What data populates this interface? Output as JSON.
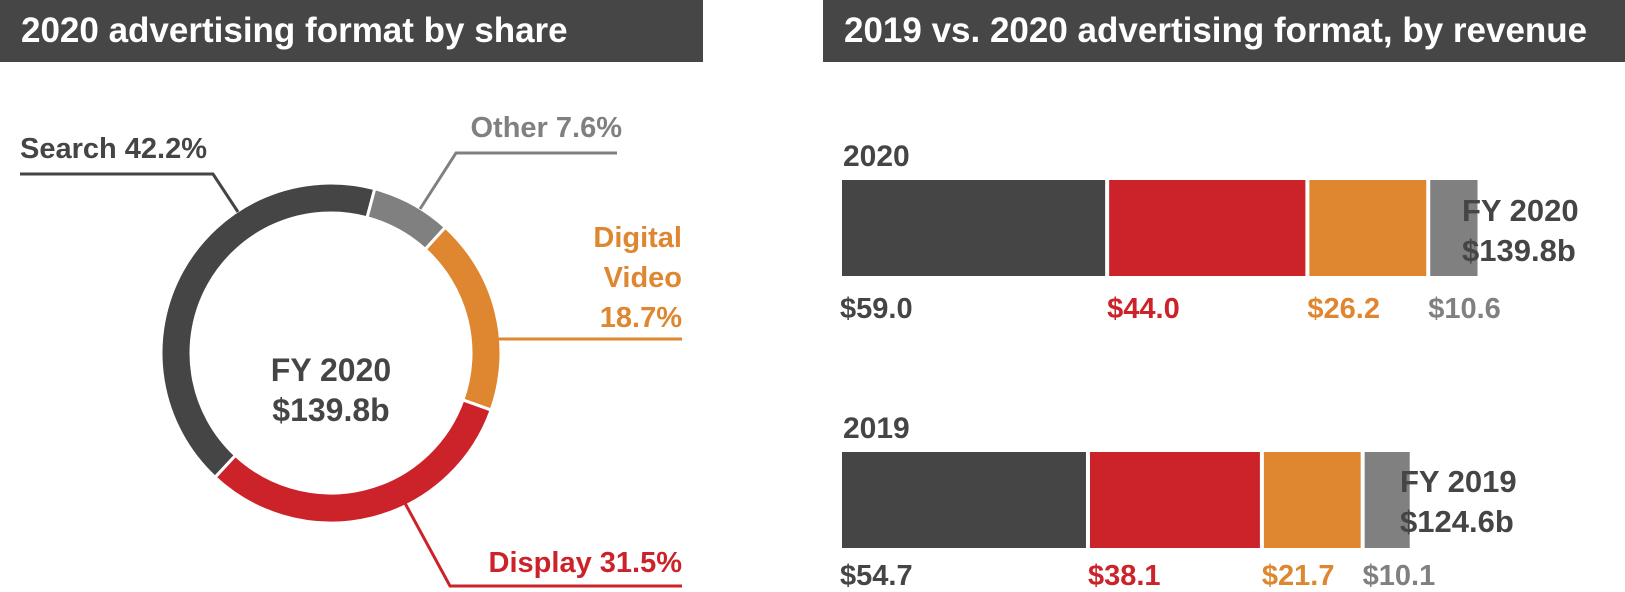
{
  "colors": {
    "search": "#444544",
    "display": "#cc2229",
    "video": "#de8630",
    "other": "#808080",
    "header_bg": "#464646"
  },
  "chart_data": [
    {
      "type": "pie",
      "variant": "donut",
      "title": "2020 advertising format by share",
      "center_label_line1": "FY 2020",
      "center_label_line2": "$139.8b",
      "slices": [
        {
          "key": "search",
          "label": "Search 42.2%",
          "value": 42.2
        },
        {
          "key": "other",
          "label": "Other 7.6%",
          "value": 7.6
        },
        {
          "key": "video",
          "label_lines": [
            "Digital",
            "Video",
            "18.7%"
          ],
          "value": 18.7
        },
        {
          "key": "display",
          "label": "Display 31.5%",
          "value": 31.5
        }
      ]
    },
    {
      "type": "bar",
      "variant": "stacked-horizontal",
      "title": "2019 vs. 2020 advertising format, by revenue",
      "rows": [
        {
          "year": "2020",
          "total_line1": "FY 2020",
          "total_line2": "$139.8b",
          "segments": [
            {
              "key": "search",
              "value": 59.0,
              "label": "$59.0"
            },
            {
              "key": "display",
              "value": 44.0,
              "label": "$44.0"
            },
            {
              "key": "video",
              "value": 26.2,
              "label": "$26.2"
            },
            {
              "key": "other",
              "value": 10.6,
              "label": "$10.6"
            }
          ]
        },
        {
          "year": "2019",
          "total_line1": "FY 2019",
          "total_line2": "$124.6b",
          "segments": [
            {
              "key": "search",
              "value": 54.7,
              "label": "$54.7"
            },
            {
              "key": "display",
              "value": 38.1,
              "label": "$38.1"
            },
            {
              "key": "video",
              "value": 21.7,
              "label": "$21.7"
            },
            {
              "key": "other",
              "value": 10.1,
              "label": "$10.1"
            }
          ]
        }
      ]
    }
  ]
}
